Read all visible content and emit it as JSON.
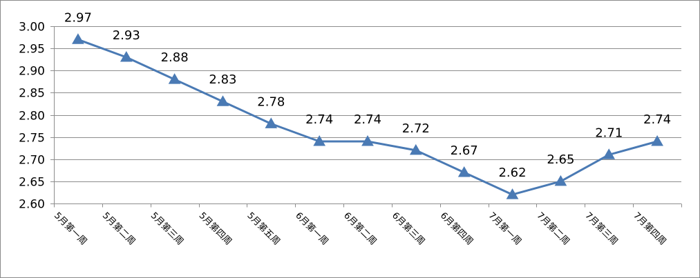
{
  "chart_data": {
    "type": "line",
    "title": "",
    "xlabel": "",
    "ylabel": "",
    "categories": [
      "5月第一周",
      "5月第二周",
      "5月第三周",
      "5月第四周",
      "5月第五周",
      "6月第一周",
      "6月第二周",
      "6月第三周",
      "6月第四周",
      "7月第一周",
      "7月第二周",
      "7月第三周",
      "7月第四周"
    ],
    "series": [
      {
        "values": [
          2.97,
          2.93,
          2.88,
          2.83,
          2.78,
          2.74,
          2.74,
          2.72,
          2.67,
          2.62,
          2.65,
          2.71,
          2.74
        ],
        "data_labels": [
          "2.97",
          "2.93",
          "2.88",
          "2.83",
          "2.78",
          "2.74",
          "2.74",
          "2.72",
          "2.67",
          "2.62",
          "2.65",
          "2.71",
          "2.74"
        ],
        "color": "#4a7ab4",
        "marker": "triangle"
      }
    ],
    "ylim": [
      2.6,
      3.0
    ],
    "yticks": [
      "2.60",
      "2.65",
      "2.70",
      "2.75",
      "2.80",
      "2.85",
      "2.90",
      "2.95",
      "3.00"
    ],
    "grid": true,
    "legend": "none",
    "gridline_color": "#8c8c8c"
  }
}
